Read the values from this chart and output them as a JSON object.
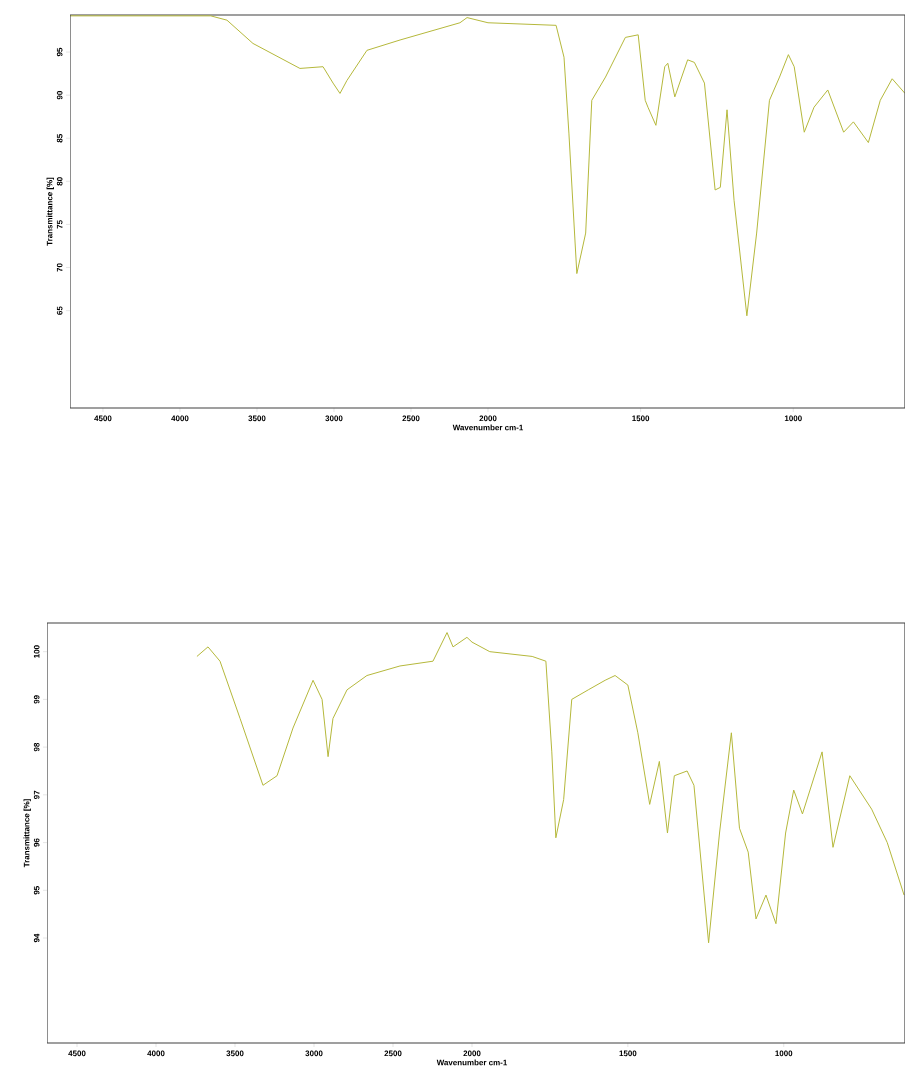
{
  "chart_data": [
    {
      "type": "line",
      "xlabel": "Wavenumber cm-1",
      "ylabel": "Transmittance [%]",
      "x": [
        4714,
        3800,
        3695,
        3526,
        3221,
        3071,
        3006,
        2961,
        2916,
        2786,
        2571,
        2182,
        2136,
        2000
      ],
      "series": [
        {
          "color": "#b5b83a",
          "values": [
            99.2,
            99.2,
            98.7,
            96,
            93.1,
            93.3,
            91.4,
            90.2,
            91.7,
            95.2,
            96.4,
            98.4,
            99,
            98.4
          ]
        }
      ],
      "xlim": [
        4714,
        2000
      ],
      "ylim": [
        53.7,
        99.3
      ],
      "xticks": [
        4500,
        4000,
        3500,
        3000,
        2500,
        2000
      ],
      "yticks": [
        65,
        70,
        75,
        80,
        85,
        90,
        95
      ]
    },
    {
      "type": "line",
      "tick_labels": "x",
      "x": [
        2000,
        1777,
        1751,
        1735,
        1709,
        1680,
        1660,
        1615,
        1550,
        1508,
        1485,
        1476,
        1450,
        1421,
        1411,
        1388,
        1346,
        1324,
        1291,
        1256,
        1239,
        1217,
        1194,
        1152,
        1120,
        1078,
        1045,
        1016,
        997,
        964,
        932,
        887,
        835,
        803,
        754,
        715,
        676,
        634
      ],
      "series": [
        {
          "color": "#b5b83a",
          "values": [
            98.4,
            98.1,
            94.4,
            85.6,
            69.3,
            74,
            89.4,
            92.1,
            96.7,
            97,
            89.4,
            88.6,
            86.5,
            93.3,
            93.7,
            89.8,
            94.1,
            93.8,
            91.4,
            79,
            79.3,
            88.3,
            77.8,
            64.4,
            74,
            89.4,
            92.1,
            94.7,
            93.3,
            85.7,
            88.6,
            90.6,
            85.7,
            86.9,
            84.5,
            89.4,
            91.9,
            90.2
          ]
        }
      ],
      "xlim": [
        2000,
        634
      ],
      "ylim": [
        53.7,
        99.3
      ],
      "xticks": [
        1500,
        1000
      ]
    },
    {
      "type": "line",
      "xlabel": "Wavenumber cm-1",
      "ylabel": "Transmittance [%]",
      "x": [
        3741,
        3671,
        3595,
        3468,
        3323,
        3234,
        3133,
        3006,
        2949,
        2911,
        2880,
        2791,
        2665,
        2456,
        2247,
        2158,
        2120,
        2032,
        2000
      ],
      "series": [
        {
          "color": "#b5b83a",
          "values": [
            99.9,
            100.1,
            99.8,
            98.6,
            97.2,
            97.4,
            98.4,
            99.4,
            99.0,
            97.8,
            98.6,
            99.2,
            99.5,
            99.7,
            99.8,
            100.4,
            100.1,
            100.3,
            100.2
          ]
        }
      ],
      "xlim": [
        4690,
        2000
      ],
      "ylim": [
        91.8,
        100.6
      ],
      "xticks": [
        4500,
        4000,
        3500,
        3000,
        2500,
        2000
      ],
      "yticks": [
        94,
        95,
        96,
        97,
        98,
        99,
        100
      ]
    },
    {
      "type": "line",
      "tick_labels": "x",
      "x": [
        2000,
        1943,
        1807,
        1763,
        1744,
        1731,
        1706,
        1680,
        1627,
        1573,
        1541,
        1500,
        1468,
        1430,
        1399,
        1373,
        1351,
        1310,
        1288,
        1241,
        1206,
        1168,
        1142,
        1114,
        1089,
        1057,
        1025,
        994,
        968,
        940,
        877,
        842,
        788,
        718,
        668,
        614
      ],
      "series": [
        {
          "color": "#b5b83a",
          "values": [
            100.2,
            100.0,
            99.9,
            99.8,
            97.9,
            96.1,
            96.9,
            99.0,
            99.2,
            99.4,
            99.5,
            99.3,
            98.3,
            96.8,
            97.7,
            96.2,
            97.4,
            97.5,
            97.2,
            93.9,
            96.2,
            98.3,
            96.3,
            95.8,
            94.4,
            94.9,
            94.3,
            96.2,
            97.1,
            96.6,
            97.9,
            95.9,
            97.4,
            96.7,
            96.0,
            94.9
          ]
        }
      ],
      "xlim": [
        2000,
        611
      ],
      "ylim": [
        91.8,
        100.6
      ],
      "xticks": [
        1500,
        1000
      ]
    }
  ]
}
